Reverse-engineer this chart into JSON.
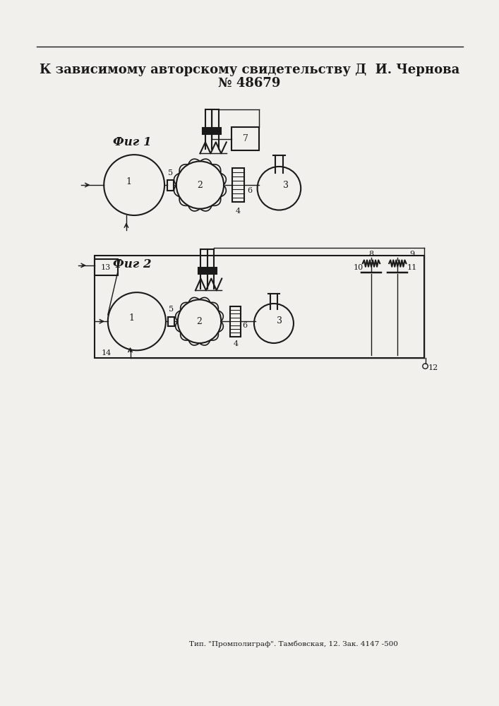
{
  "title_line1": "К зависимому авторскому свидетельству Д  И. Чернова",
  "title_line2": "№ 48679",
  "fig1_label": "Фиг 1",
  "fig2_label": "Фиг 2",
  "footer": "Тип. \"Промполиграф\". Тамбовская, 12. Зак. 4147 -500",
  "bg_color": "#f2f0ec",
  "line_color": "#1a1a1a"
}
